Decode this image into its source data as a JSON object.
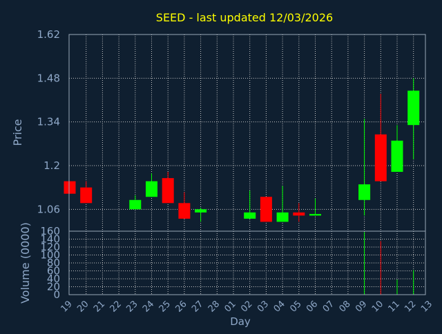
{
  "colors": {
    "background": "#0f1f30",
    "axis_text": "#8fa8c8",
    "title": "#ffff00",
    "grid": "#c8c8c8",
    "frame": "#9aa8b8",
    "up": "#00ff00",
    "down": "#ff0000"
  },
  "chart_data": {
    "type": "candlestick",
    "title": "SEED - last updated 12/03/2026",
    "xlabel": "Day",
    "ylabel": "Price",
    "volume_label": "Volume (0000)",
    "grid": true,
    "x_ticks": [
      "19",
      "20",
      "21",
      "22",
      "23",
      "24",
      "25",
      "26",
      "27",
      "28",
      "01",
      "02",
      "03",
      "04",
      "05",
      "06",
      "07",
      "08",
      "09",
      "10",
      "11",
      "12",
      "13"
    ],
    "price_ylim": [
      0.99,
      1.62
    ],
    "price_ticks": [
      "1.62",
      "1.48",
      "1.34",
      "1.2",
      "1.06"
    ],
    "volume_ylim": [
      0,
      160
    ],
    "volume_ticks": [
      "160",
      "140",
      "120",
      "100",
      "80",
      "60",
      "40",
      "20",
      "0"
    ],
    "candles": [
      {
        "x": "19",
        "open": 1.15,
        "close": 1.11,
        "high": 1.15,
        "low": 1.11
      },
      {
        "x": "20",
        "open": 1.13,
        "close": 1.08,
        "high": 1.15,
        "low": 1.08
      },
      {
        "x": "23",
        "open": 1.06,
        "close": 1.09,
        "high": 1.105,
        "low": 1.06
      },
      {
        "x": "24",
        "open": 1.1,
        "close": 1.15,
        "high": 1.175,
        "low": 1.1
      },
      {
        "x": "25",
        "open": 1.16,
        "close": 1.08,
        "high": 1.18,
        "low": 1.08
      },
      {
        "x": "26",
        "open": 1.08,
        "close": 1.03,
        "high": 1.115,
        "low": 1.03
      },
      {
        "x": "27",
        "open": 1.05,
        "close": 1.06,
        "high": 1.065,
        "low": 1.02
      },
      {
        "x": "02",
        "open": 1.03,
        "close": 1.05,
        "high": 1.12,
        "low": 1.03
      },
      {
        "x": "03",
        "open": 1.1,
        "close": 1.02,
        "high": 1.1,
        "low": 1.02
      },
      {
        "x": "04",
        "open": 1.02,
        "close": 1.05,
        "high": 1.135,
        "low": 1.02
      },
      {
        "x": "05",
        "open": 1.05,
        "close": 1.04,
        "high": 1.08,
        "low": 1.02
      },
      {
        "x": "06",
        "open": 1.04,
        "close": 1.045,
        "high": 1.095,
        "low": 1.04
      },
      {
        "x": "09",
        "open": 1.09,
        "close": 1.14,
        "high": 1.35,
        "low": 1.04
      },
      {
        "x": "10",
        "open": 1.3,
        "close": 1.15,
        "high": 1.43,
        "low": 1.15
      },
      {
        "x": "11",
        "open": 1.18,
        "close": 1.28,
        "high": 1.33,
        "low": 1.18
      },
      {
        "x": "12",
        "open": 1.33,
        "close": 1.44,
        "high": 1.48,
        "low": 1.22
      }
    ],
    "volume": [
      {
        "x": "19",
        "value": 0
      },
      {
        "x": "20",
        "value": 0
      },
      {
        "x": "23",
        "value": 0
      },
      {
        "x": "24",
        "value": 0
      },
      {
        "x": "25",
        "value": 0
      },
      {
        "x": "26",
        "value": 0
      },
      {
        "x": "27",
        "value": 0
      },
      {
        "x": "02",
        "value": 0
      },
      {
        "x": "03",
        "value": 0
      },
      {
        "x": "04",
        "value": 0
      },
      {
        "x": "05",
        "value": 0
      },
      {
        "x": "06",
        "value": 0
      },
      {
        "x": "09",
        "value": 158
      },
      {
        "x": "10",
        "value": 135
      },
      {
        "x": "11",
        "value": 38
      },
      {
        "x": "12",
        "value": 62
      }
    ]
  }
}
